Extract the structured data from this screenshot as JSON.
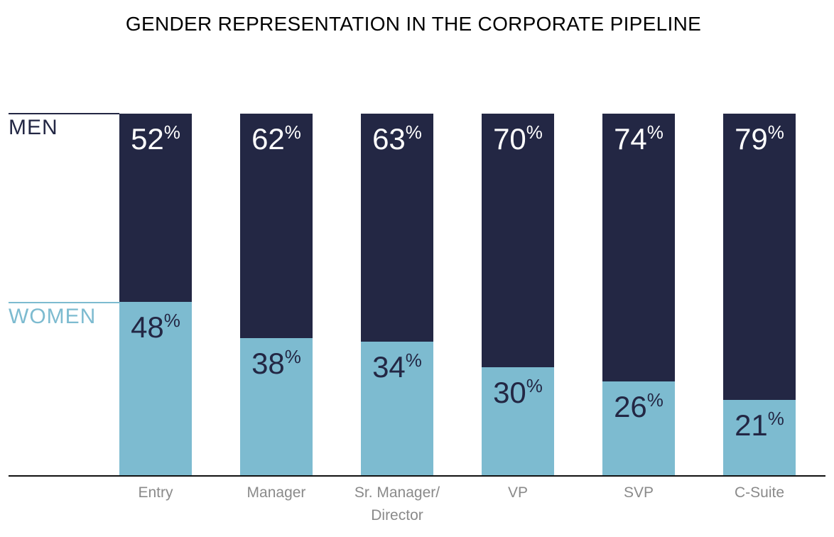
{
  "chart_data": {
    "type": "bar",
    "stacked": true,
    "title": "GENDER REPRESENTATION IN THE CORPORATE PIPELINE",
    "categories": [
      "Entry",
      "Manager",
      "Sr. Manager/ Director",
      "VP",
      "SVP",
      "C-Suite"
    ],
    "category_lines": [
      [
        "Entry"
      ],
      [
        "Manager"
      ],
      [
        "Sr. Manager/",
        "Director"
      ],
      [
        "VP"
      ],
      [
        "SVP"
      ],
      [
        "C-Suite"
      ]
    ],
    "series": [
      {
        "name": "MEN",
        "values": [
          52,
          62,
          63,
          70,
          74,
          79
        ],
        "color": "#232744"
      },
      {
        "name": "WOMEN",
        "values": [
          48,
          38,
          34,
          30,
          26,
          21
        ],
        "color": "#7dbbd0"
      }
    ],
    "value_suffix": "%",
    "ylim": [
      0,
      100
    ],
    "grid": false,
    "legend": "left"
  }
}
